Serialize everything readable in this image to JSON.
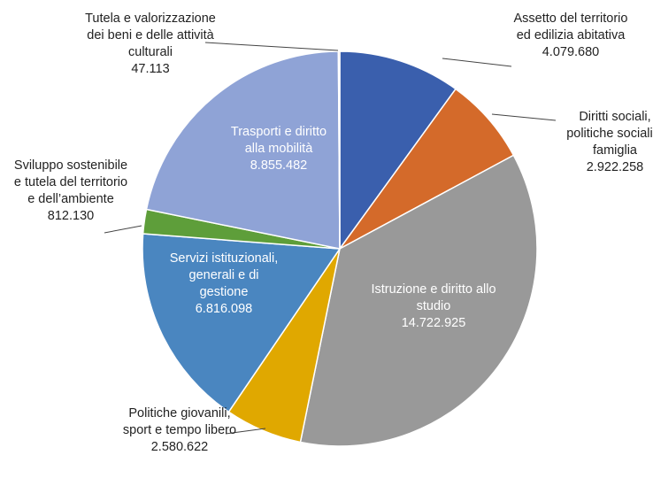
{
  "chart_data": {
    "type": "pie",
    "categories": [
      "Assetto del territorio ed edilizia abitativa",
      "Diritti sociali, politiche sociali e famiglia",
      "Istruzione e diritto allo studio",
      "Politiche giovanili, sport e tempo libero",
      "Servizi istituzionali, generali e di gestione",
      "Sviluppo sostenibile e tutela del territorio e dell’ambiente",
      "Trasporti e diritto alla mobilità",
      "Tutela e valorizzazione dei beni e delle attività culturali"
    ],
    "values": [
      4079680,
      2922258,
      14722925,
      2580622,
      6816098,
      812130,
      8855482,
      47113
    ],
    "value_labels": [
      "4.079.680",
      "2.922.258",
      "14.722.925",
      "2.580.622",
      "6.816.098",
      "812.130",
      "8.855.482",
      "47.113"
    ],
    "colors": [
      "#3a5fad",
      "#d46a2a",
      "#999999",
      "#e0a800",
      "#4a86c0",
      "#5e9e3a",
      "#8fa3d6",
      "#c9847a"
    ]
  }
}
